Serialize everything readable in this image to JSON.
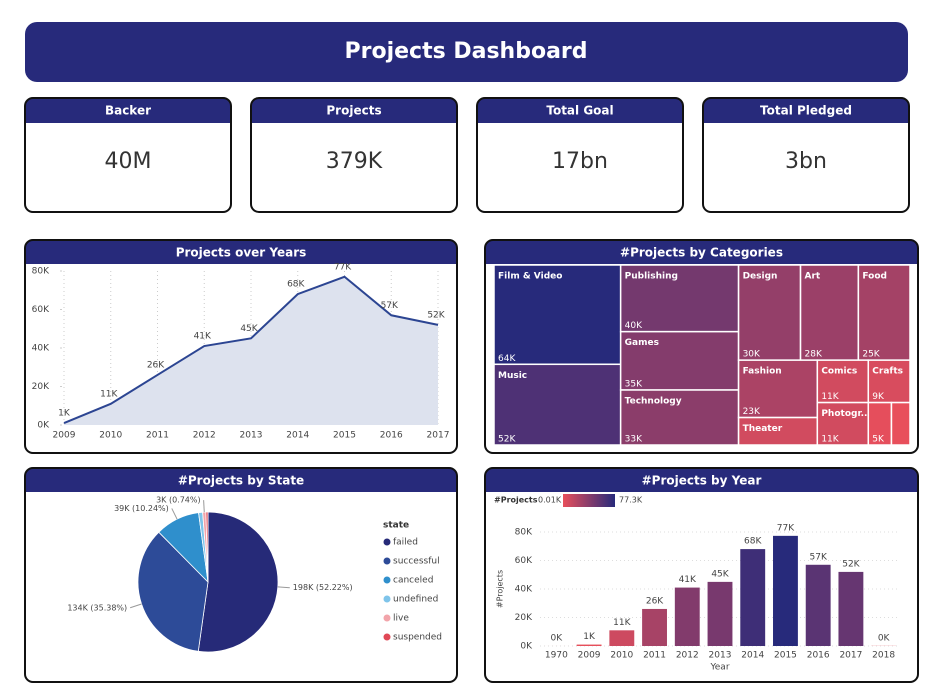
{
  "header": {
    "title": "Projects Dashboard"
  },
  "kpis": [
    {
      "label": "Backer",
      "value": "40M"
    },
    {
      "label": "Projects",
      "value": "379K"
    },
    {
      "label": "Total Goal",
      "value": "17bn"
    },
    {
      "label": "Total Pledged",
      "value": "3bn"
    }
  ],
  "chart_data": [
    {
      "type": "area",
      "title": "Projects over Years",
      "categories": [
        "2009",
        "2010",
        "2011",
        "2012",
        "2013",
        "2014",
        "2015",
        "2016",
        "2017"
      ],
      "values": [
        1000,
        11000,
        26000,
        41000,
        45000,
        68000,
        77000,
        57000,
        52000
      ],
      "value_labels": [
        "1K",
        "11K",
        "26K",
        "41K",
        "45K",
        "68K",
        "77K",
        "57K",
        "52K"
      ],
      "color": "#2c4592",
      "fill": "#dde2ee",
      "ylim": [
        0,
        80000
      ],
      "yticks": [
        {
          "value": 0,
          "label": "0K"
        },
        {
          "value": 20000,
          "label": "20K"
        },
        {
          "value": 40000,
          "label": "40K"
        },
        {
          "value": 60000,
          "label": "60K"
        },
        {
          "value": 80000,
          "label": "80K"
        }
      ]
    },
    {
      "type": "treemap",
      "title": "#Projects by Categories",
      "categories": [
        "Film & Video",
        "Music",
        "Publishing",
        "Games",
        "Technology",
        "Design",
        "Art",
        "Food",
        "Fashion",
        "Theater",
        "Comics",
        "Photogr...",
        "Crafts",
        null,
        null
      ],
      "values": [
        64000,
        52000,
        40000,
        35000,
        33000,
        30000,
        28000,
        25000,
        23000,
        11000,
        11000,
        11000,
        9000,
        5000,
        4000
      ],
      "value_labels": [
        "64K",
        "52K",
        "40K",
        "35K",
        "33K",
        "30K",
        "28K",
        "25K",
        "23K",
        null,
        "11K",
        "11K",
        "9K",
        "5K",
        null
      ],
      "color_range": [
        "#e84f5b",
        "#272a7b"
      ]
    },
    {
      "type": "pie",
      "title": "#Projects by State",
      "legend_title": "state",
      "categories": [
        "failed",
        "successful",
        "canceled",
        "undefined",
        "live",
        "suspended"
      ],
      "values": [
        52.22,
        35.38,
        10.24,
        0.94,
        0.74,
        0.48
      ],
      "value_labels": [
        "198K (52.22%)",
        "134K (35.38%)",
        "39K (10.24%)",
        null,
        "3K (0.74%)",
        null
      ],
      "colors": [
        "#262a78",
        "#2d4b98",
        "#2f8fcc",
        "#7fc4ea",
        "#f2a4aa",
        "#e04856"
      ]
    },
    {
      "type": "bar",
      "title": "#Projects by Year",
      "categories": [
        "1970",
        "2009",
        "2010",
        "2011",
        "2012",
        "2013",
        "2014",
        "2015",
        "2016",
        "2017",
        "2018"
      ],
      "values": [
        10,
        1000,
        11000,
        26000,
        41000,
        45000,
        68000,
        77300,
        57000,
        52000,
        100
      ],
      "value_labels": [
        "0K",
        "1K",
        "11K",
        "26K",
        "41K",
        "45K",
        "68K",
        "77K",
        "57K",
        "52K",
        "0K"
      ],
      "xlabel": "Year",
      "ylabel": "#Projects",
      "grid": true,
      "ylim": [
        0,
        80000
      ],
      "yticks": [
        {
          "value": 0,
          "label": "0K"
        },
        {
          "value": 20000,
          "label": "20K"
        },
        {
          "value": 40000,
          "label": "40K"
        },
        {
          "value": 60000,
          "label": "60K"
        },
        {
          "value": 80000,
          "label": "80K"
        }
      ],
      "color_scale": {
        "title": "#Projects",
        "min": {
          "value": 10,
          "label": "0.01K"
        },
        "max": {
          "value": 77300,
          "label": "77.3K"
        },
        "colors": [
          "#e84f5b",
          "#272a7b"
        ]
      }
    }
  ]
}
